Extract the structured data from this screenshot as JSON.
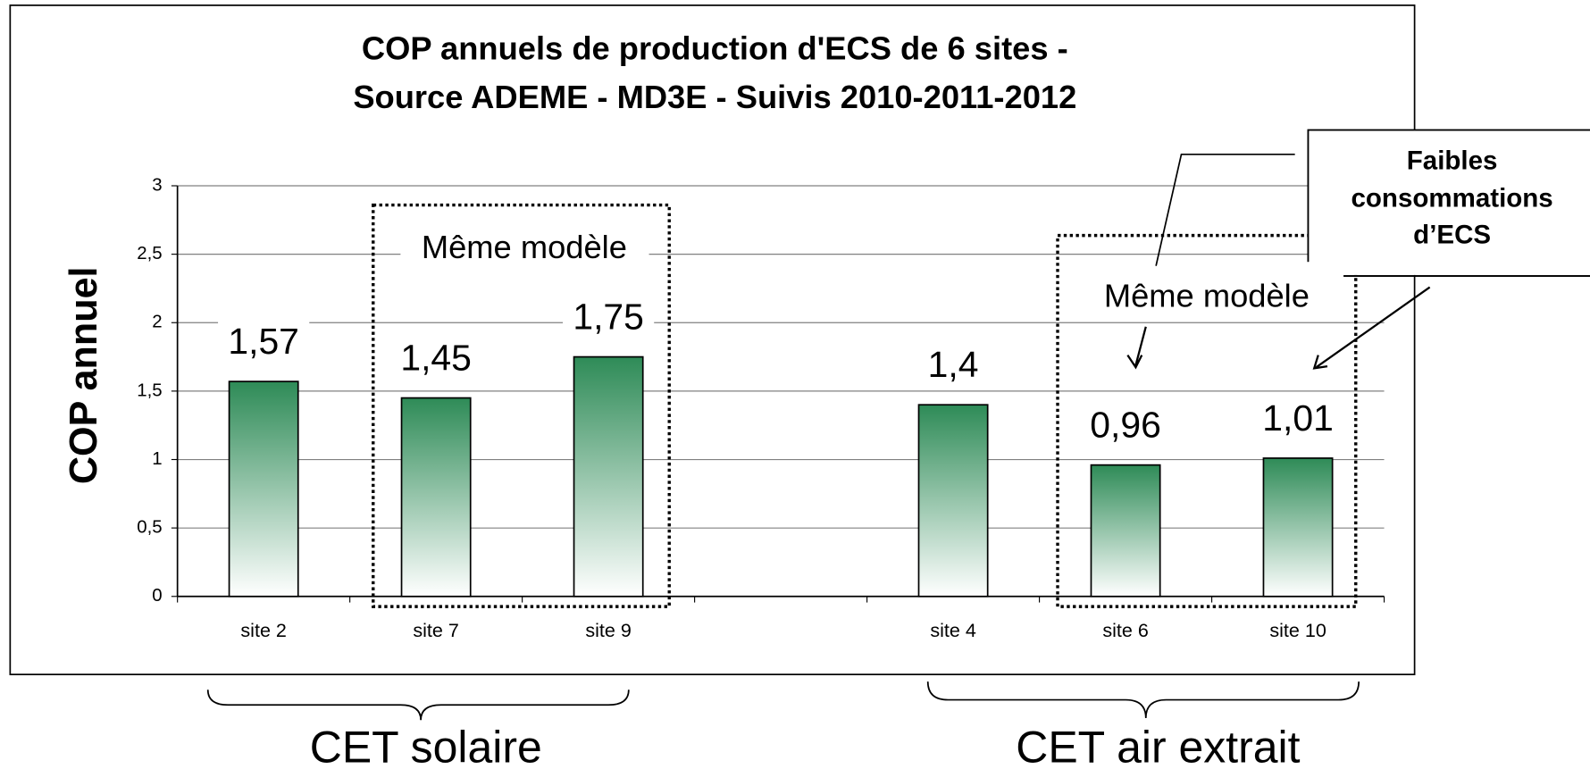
{
  "chart_data": {
    "type": "bar",
    "title": [
      "COP annuels de production d'ECS de 6 sites -",
      "Source ADEME - MD3E - Suivis 2010-2011-2012"
    ],
    "y_label": "COP annuel",
    "categories": [
      "site 2",
      "site 7",
      "site 9",
      null,
      "site 4",
      "site 6",
      "site 10"
    ],
    "values": [
      1.57,
      1.45,
      1.75,
      null,
      1.4,
      0.96,
      1.01
    ],
    "value_labels": [
      "1,57",
      "1,45",
      "1,75",
      null,
      "1,4",
      "0,96",
      "1,01"
    ],
    "color": "#2e8b57",
    "ylim": [
      0,
      3
    ],
    "yticks": [
      0,
      {
        "value": 0.5,
        "label": "0,5"
      },
      1,
      {
        "value": 1.5,
        "label": "1,5"
      },
      2,
      {
        "value": 2.5,
        "label": "2,5"
      },
      3
    ],
    "grid": true,
    "annotations": [
      "Même modèle",
      "Même modèle"
    ],
    "callout": [
      "Faibles",
      "consommations",
      "d’ECS"
    ],
    "groups": [
      "CET solaire",
      "CET air extrait"
    ]
  }
}
